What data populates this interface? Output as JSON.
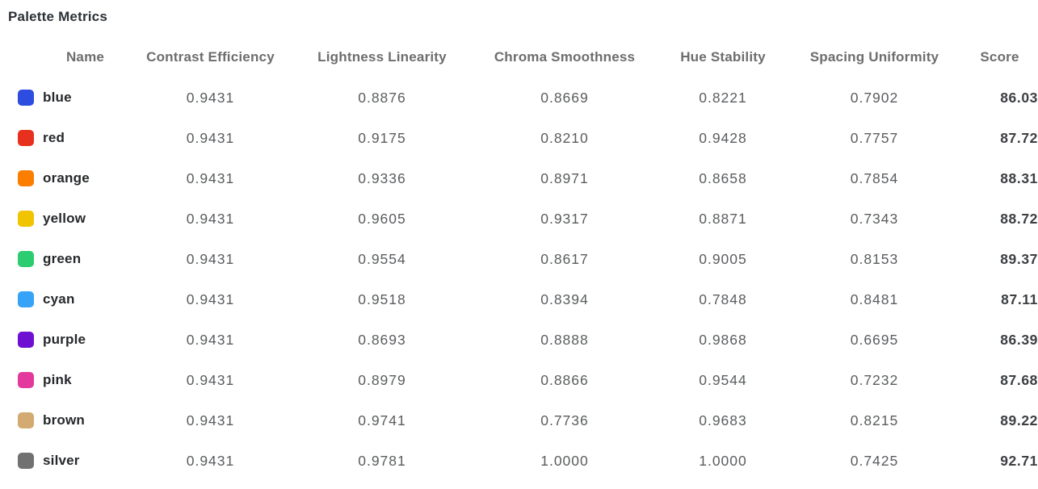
{
  "title": "Palette Metrics",
  "chart_data": {
    "type": "table",
    "title": "Palette Metrics",
    "columns": [
      "Name",
      "Contrast Efficiency",
      "Lightness Linearity",
      "Chroma Smoothness",
      "Hue Stability",
      "Spacing Uniformity",
      "Score"
    ],
    "rows": [
      {
        "name": "blue",
        "swatch_color": "#2d4de0",
        "values": [
          "0.9431",
          "0.8876",
          "0.8669",
          "0.8221",
          "0.7902"
        ],
        "score": "86.03"
      },
      {
        "name": "red",
        "swatch_color": "#e7301d",
        "values": [
          "0.9431",
          "0.9175",
          "0.8210",
          "0.9428",
          "0.7757"
        ],
        "score": "87.72"
      },
      {
        "name": "orange",
        "swatch_color": "#fb7e00",
        "values": [
          "0.9431",
          "0.9336",
          "0.8971",
          "0.8658",
          "0.7854"
        ],
        "score": "88.31"
      },
      {
        "name": "yellow",
        "swatch_color": "#f0c400",
        "values": [
          "0.9431",
          "0.9605",
          "0.9317",
          "0.8871",
          "0.7343"
        ],
        "score": "88.72"
      },
      {
        "name": "green",
        "swatch_color": "#2ecc71",
        "values": [
          "0.9431",
          "0.9554",
          "0.8617",
          "0.9005",
          "0.8153"
        ],
        "score": "89.37"
      },
      {
        "name": "cyan",
        "swatch_color": "#36a3f8",
        "values": [
          "0.9431",
          "0.9518",
          "0.8394",
          "0.7848",
          "0.8481"
        ],
        "score": "87.11"
      },
      {
        "name": "purple",
        "swatch_color": "#6e10d2",
        "values": [
          "0.9431",
          "0.8693",
          "0.8888",
          "0.9868",
          "0.6695"
        ],
        "score": "86.39"
      },
      {
        "name": "pink",
        "swatch_color": "#e4399c",
        "values": [
          "0.9431",
          "0.8979",
          "0.8866",
          "0.9544",
          "0.7232"
        ],
        "score": "87.68"
      },
      {
        "name": "brown",
        "swatch_color": "#d3aa71",
        "values": [
          "0.9431",
          "0.9741",
          "0.7736",
          "0.9683",
          "0.8215"
        ],
        "score": "89.22"
      },
      {
        "name": "silver",
        "swatch_color": "#717171",
        "values": [
          "0.9431",
          "0.9781",
          "1.0000",
          "1.0000",
          "0.7425"
        ],
        "score": "92.71"
      }
    ]
  },
  "colors": {
    "background": "#ffffff",
    "title_text": "#2d3136",
    "header_text": "#6d6d6d",
    "name_text": "#26282b",
    "value_text": "#5a5c5e",
    "score_text": "#3d3f42"
  }
}
